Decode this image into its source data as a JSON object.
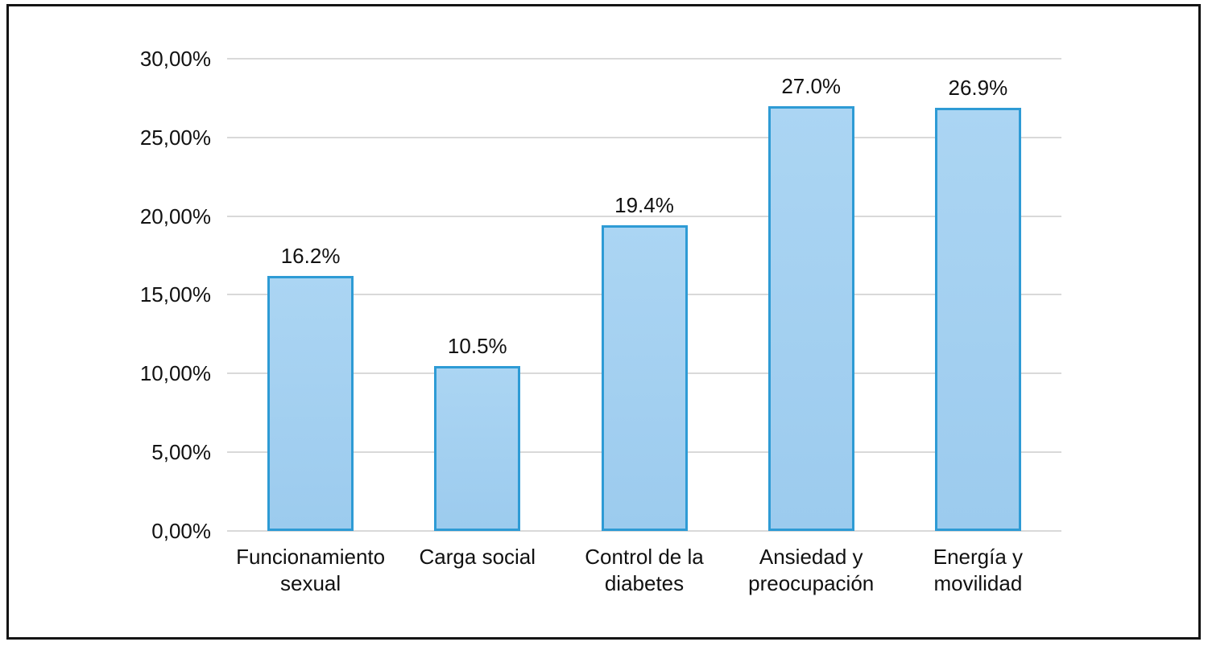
{
  "chart_data": {
    "type": "bar",
    "title": "",
    "xlabel": "",
    "ylabel": "",
    "categories": [
      "Funcionamiento\nsexual",
      "Carga social",
      "Control de la\ndiabetes",
      "Ansiedad y\npreocupación",
      "Energía y\nmovilidad"
    ],
    "values": [
      16.2,
      10.5,
      19.4,
      27.0,
      26.9
    ],
    "data_labels": [
      "16.2%",
      "10.5%",
      "19.4%",
      "27.0%",
      "26.9%"
    ],
    "y_ticks": [
      "0,00%",
      "5,00%",
      "10,00%",
      "15,00%",
      "20,00%",
      "25,00%",
      "30,00%"
    ],
    "ylim": [
      0,
      30
    ],
    "grid": true,
    "legend": false,
    "colors": {
      "bar_fill": "#9ccbee",
      "bar_fill_top": "#abd5f3",
      "bar_border": "#2e9bd5",
      "gridline": "#d9d9d9",
      "axis_line": "#d9d9d9",
      "text": "#111111",
      "frame_border": "#141414",
      "background": "#ffffff"
    }
  }
}
